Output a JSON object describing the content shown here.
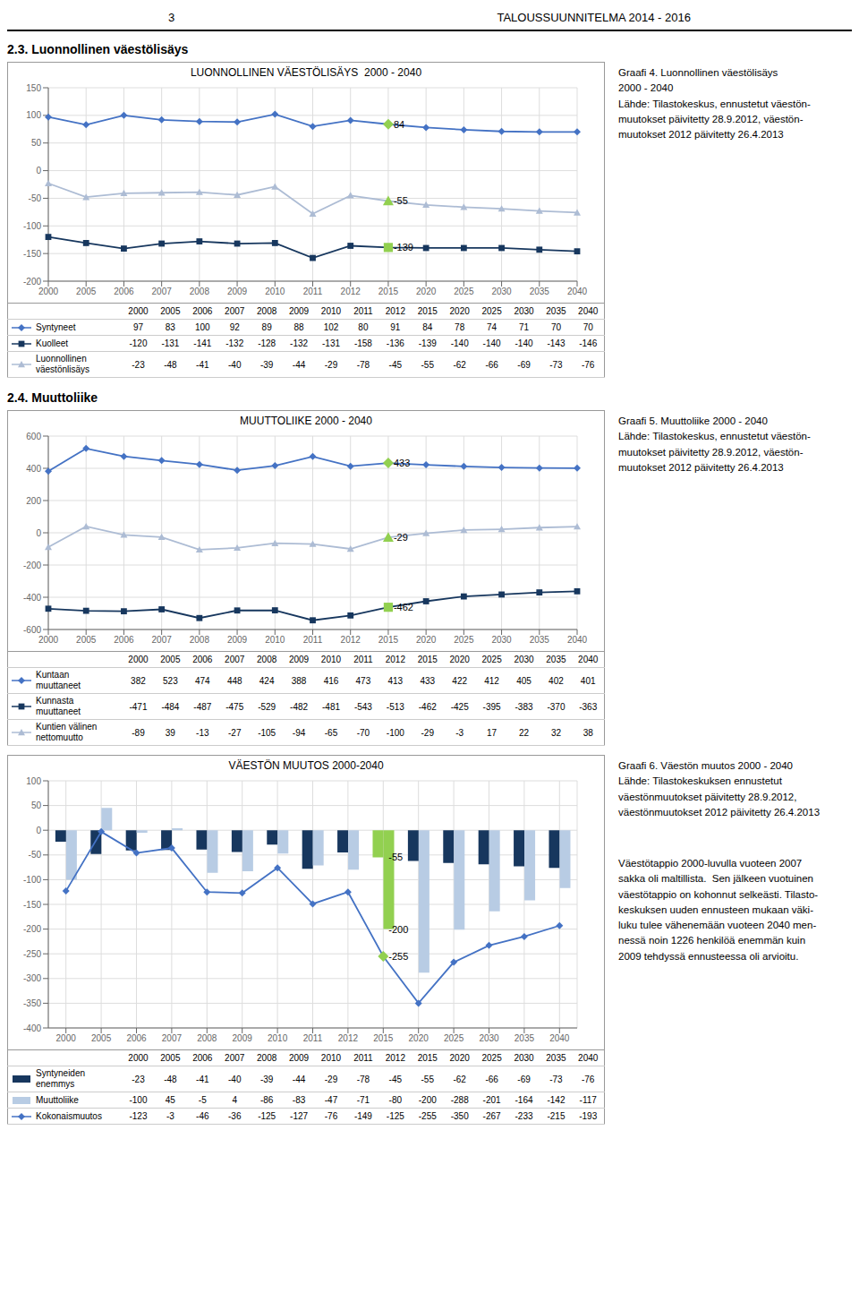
{
  "annotations": [
    {
      "text": "3"
    },
    {
      "text": "TALOUSSUUNNITELMA 2014 - 2016"
    }
  ],
  "chart_data": [
    {
      "type": "line",
      "title": "LUONNOLLINEN VÄESTÖLISÄYS  2000 - 2040",
      "subtitle": "2.3. Luonnollinen väestölisäys",
      "categories": [
        2000,
        2005,
        2006,
        2007,
        2008,
        2009,
        2010,
        2011,
        2012,
        2015,
        2020,
        2025,
        2030,
        2035,
        2040
      ],
      "series": [
        {
          "name": "Syntyneet",
          "color": "#4472C4",
          "marker": "diamond",
          "colors": [
            "#4472C4",
            "#4472C4",
            "#4472C4",
            "#4472C4",
            "#4472C4",
            "#4472C4",
            "#4472C4",
            "#4472C4",
            "#4472C4",
            "#92D050",
            "#4472C4",
            "#4472C4",
            "#4472C4",
            "#4472C4",
            "#4472C4"
          ],
          "values": [
            97,
            83,
            100,
            92,
            89,
            88,
            102,
            80,
            91,
            84,
            78,
            74,
            71,
            70,
            70
          ]
        },
        {
          "name": "Kuolleet",
          "color": "#17375E",
          "marker": "square",
          "colors": [
            "#17375E",
            "#17375E",
            "#17375E",
            "#17375E",
            "#17375E",
            "#17375E",
            "#17375E",
            "#17375E",
            "#17375E",
            "#92D050",
            "#17375E",
            "#17375E",
            "#17375E",
            "#17375E",
            "#17375E"
          ],
          "values": [
            -120,
            -131,
            -141,
            -132,
            -128,
            -132,
            -131,
            -158,
            -136,
            -139,
            -140,
            -140,
            -140,
            -143,
            -146
          ]
        },
        {
          "name": "Luonnollinen\nväestönlisäys",
          "color": "#ADBCD4",
          "marker": "triangle",
          "colors": [
            "#ADBCD4",
            "#ADBCD4",
            "#ADBCD4",
            "#ADBCD4",
            "#ADBCD4",
            "#ADBCD4",
            "#ADBCD4",
            "#ADBCD4",
            "#ADBCD4",
            "#92D050",
            "#ADBCD4",
            "#ADBCD4",
            "#ADBCD4",
            "#ADBCD4",
            "#ADBCD4"
          ],
          "values": [
            -23,
            -48,
            -41,
            -40,
            -39,
            -44,
            -29,
            -78,
            -45,
            -55,
            -62,
            -66,
            -69,
            -73,
            -76
          ]
        }
      ],
      "ylim": [
        -200,
        150
      ],
      "yticks": [
        -200,
        -150,
        -100,
        -50,
        0,
        50,
        100,
        150
      ],
      "grid": true,
      "annotations": [
        {
          "text": "84",
          "x": 2015,
          "y": 84
        },
        {
          "text": "-139",
          "x": 2015,
          "y": -139
        },
        {
          "text": "-55",
          "x": 2015,
          "y": -55
        },
        {
          "text": "Graafi 4. Luonnollinen väestölisäys\n2000 - 2040\nLähde: Tilastokeskus, ennustetut väestön-\nmuutokset päivitetty 28.9.2012, väestön-\nmuutokset 2012 päivitetty 26.4.2013"
        }
      ]
    },
    {
      "type": "line",
      "title": "MUUTTOLIIKE 2000 - 2040",
      "subtitle": "2.4. Muuttoliike",
      "categories": [
        2000,
        2005,
        2006,
        2007,
        2008,
        2009,
        2010,
        2011,
        2012,
        2015,
        2020,
        2025,
        2030,
        2035,
        2040
      ],
      "series": [
        {
          "name": "Kuntaan\nmuuttaneet",
          "color": "#4472C4",
          "marker": "diamond",
          "colors": [
            "#4472C4",
            "#4472C4",
            "#4472C4",
            "#4472C4",
            "#4472C4",
            "#4472C4",
            "#4472C4",
            "#4472C4",
            "#4472C4",
            "#92D050",
            "#4472C4",
            "#4472C4",
            "#4472C4",
            "#4472C4",
            "#4472C4"
          ],
          "values": [
            382,
            523,
            474,
            448,
            424,
            388,
            416,
            473,
            413,
            433,
            422,
            412,
            405,
            402,
            401
          ]
        },
        {
          "name": "Kunnasta\nmuuttaneet",
          "color": "#17375E",
          "marker": "square",
          "colors": [
            "#17375E",
            "#17375E",
            "#17375E",
            "#17375E",
            "#17375E",
            "#17375E",
            "#17375E",
            "#17375E",
            "#17375E",
            "#92D050",
            "#17375E",
            "#17375E",
            "#17375E",
            "#17375E",
            "#17375E"
          ],
          "values": [
            -471,
            -484,
            -487,
            -475,
            -529,
            -482,
            -481,
            -543,
            -513,
            -462,
            -425,
            -395,
            -383,
            -370,
            -363
          ]
        },
        {
          "name": "Kuntien välinen\nnettomuutto",
          "color": "#ADBCD4",
          "marker": "triangle",
          "colors": [
            "#ADBCD4",
            "#ADBCD4",
            "#ADBCD4",
            "#ADBCD4",
            "#ADBCD4",
            "#ADBCD4",
            "#ADBCD4",
            "#ADBCD4",
            "#ADBCD4",
            "#92D050",
            "#ADBCD4",
            "#ADBCD4",
            "#ADBCD4",
            "#ADBCD4",
            "#ADBCD4"
          ],
          "values": [
            -89,
            39,
            -13,
            -27,
            -105,
            -94,
            -65,
            -70,
            -100,
            -29,
            -3,
            17,
            22,
            32,
            38
          ]
        }
      ],
      "ylim": [
        -600,
        600
      ],
      "yticks": [
        -600,
        -400,
        -200,
        0,
        200,
        400,
        600
      ],
      "grid": true,
      "annotations": [
        {
          "text": "433",
          "x": 2015,
          "y": 433
        },
        {
          "text": "-462",
          "x": 2015,
          "y": -462
        },
        {
          "text": "-29",
          "x": 2015,
          "y": -29
        },
        {
          "text": "Graafi 5. Muuttoliike 2000 - 2040\nLähde: Tilastokeskus, ennustetut väestön-\nmuutokset päivitetty 28.9.2012, väestön-\nmuutokset 2012 päivitetty 26.4.2013"
        }
      ]
    },
    {
      "type": "bar",
      "title": "VÄESTÖN MUUTOS 2000-2040",
      "categories": [
        2000,
        2005,
        2006,
        2007,
        2008,
        2009,
        2010,
        2011,
        2012,
        2015,
        2020,
        2025,
        2030,
        2035,
        2040
      ],
      "series": [
        {
          "name": "Syntyneiden\nenemmys",
          "type": "bar",
          "color": "#17375E",
          "colors": [
            "#17375E",
            "#17375E",
            "#17375E",
            "#17375E",
            "#17375E",
            "#17375E",
            "#17375E",
            "#17375E",
            "#17375E",
            "#92D050",
            "#17375E",
            "#17375E",
            "#17375E",
            "#17375E",
            "#17375E"
          ],
          "values": [
            -23,
            -48,
            -41,
            -40,
            -39,
            -44,
            -29,
            -78,
            -45,
            -55,
            -62,
            -66,
            -69,
            -73,
            -76
          ]
        },
        {
          "name": "Muuttoliike",
          "type": "bar",
          "color": "#B8CCE4",
          "colors": [
            "#B8CCE4",
            "#B8CCE4",
            "#B8CCE4",
            "#B8CCE4",
            "#B8CCE4",
            "#B8CCE4",
            "#B8CCE4",
            "#B8CCE4",
            "#B8CCE4",
            "#92D050",
            "#B8CCE4",
            "#B8CCE4",
            "#B8CCE4",
            "#B8CCE4",
            "#B8CCE4"
          ],
          "values": [
            -100,
            45,
            -5,
            4,
            -86,
            -83,
            -47,
            -71,
            -80,
            -200,
            -288,
            -201,
            -164,
            -142,
            -117
          ]
        },
        {
          "name": "Kokonaismuutos",
          "type": "line",
          "color": "#4472C4",
          "marker": "diamond",
          "colors": [
            "#4472C4",
            "#4472C4",
            "#4472C4",
            "#4472C4",
            "#4472C4",
            "#4472C4",
            "#4472C4",
            "#4472C4",
            "#4472C4",
            "#92D050",
            "#4472C4",
            "#4472C4",
            "#4472C4",
            "#4472C4",
            "#4472C4"
          ],
          "values": [
            -123,
            -3,
            -46,
            -36,
            -125,
            -127,
            -76,
            -149,
            -125,
            -255,
            -350,
            -267,
            -233,
            -215,
            -193
          ]
        }
      ],
      "ylim": [
        -400,
        100
      ],
      "yticks": [
        -400,
        -350,
        -300,
        -250,
        -200,
        -150,
        -100,
        -50,
        0,
        50,
        100
      ],
      "grid": true,
      "annotations": [
        {
          "text": "-55",
          "x": 2015,
          "y": -55
        },
        {
          "text": "-200",
          "x": 2015,
          "y": -200
        },
        {
          "text": "-255",
          "x": 2015,
          "y": -255
        },
        {
          "text": "Graafi 6. Väestön muutos 2000 - 2040\nLähde: Tilastokeskuksen ennustetut\nväestönmuutokset päivitetty 28.9.2012,\nväestönmuutokset 2012 päivitetty 26.4.2013"
        },
        {
          "text": "Väestötappio 2000-luvulla vuoteen 2007\nsakka oli maltillista.  Sen jälkeen vuotuinen\nväestötappio on kohonnut selkeästi. Tilasto-\nkeskuksen uuden ennusteen mukaan väki-\nluku tulee vähenemään vuoteen 2040 men-\nnessä noin 1226 henkilöä enemmän kuin\n2009 tehdyssä ennusteessa oli arvioitu."
        }
      ]
    }
  ]
}
